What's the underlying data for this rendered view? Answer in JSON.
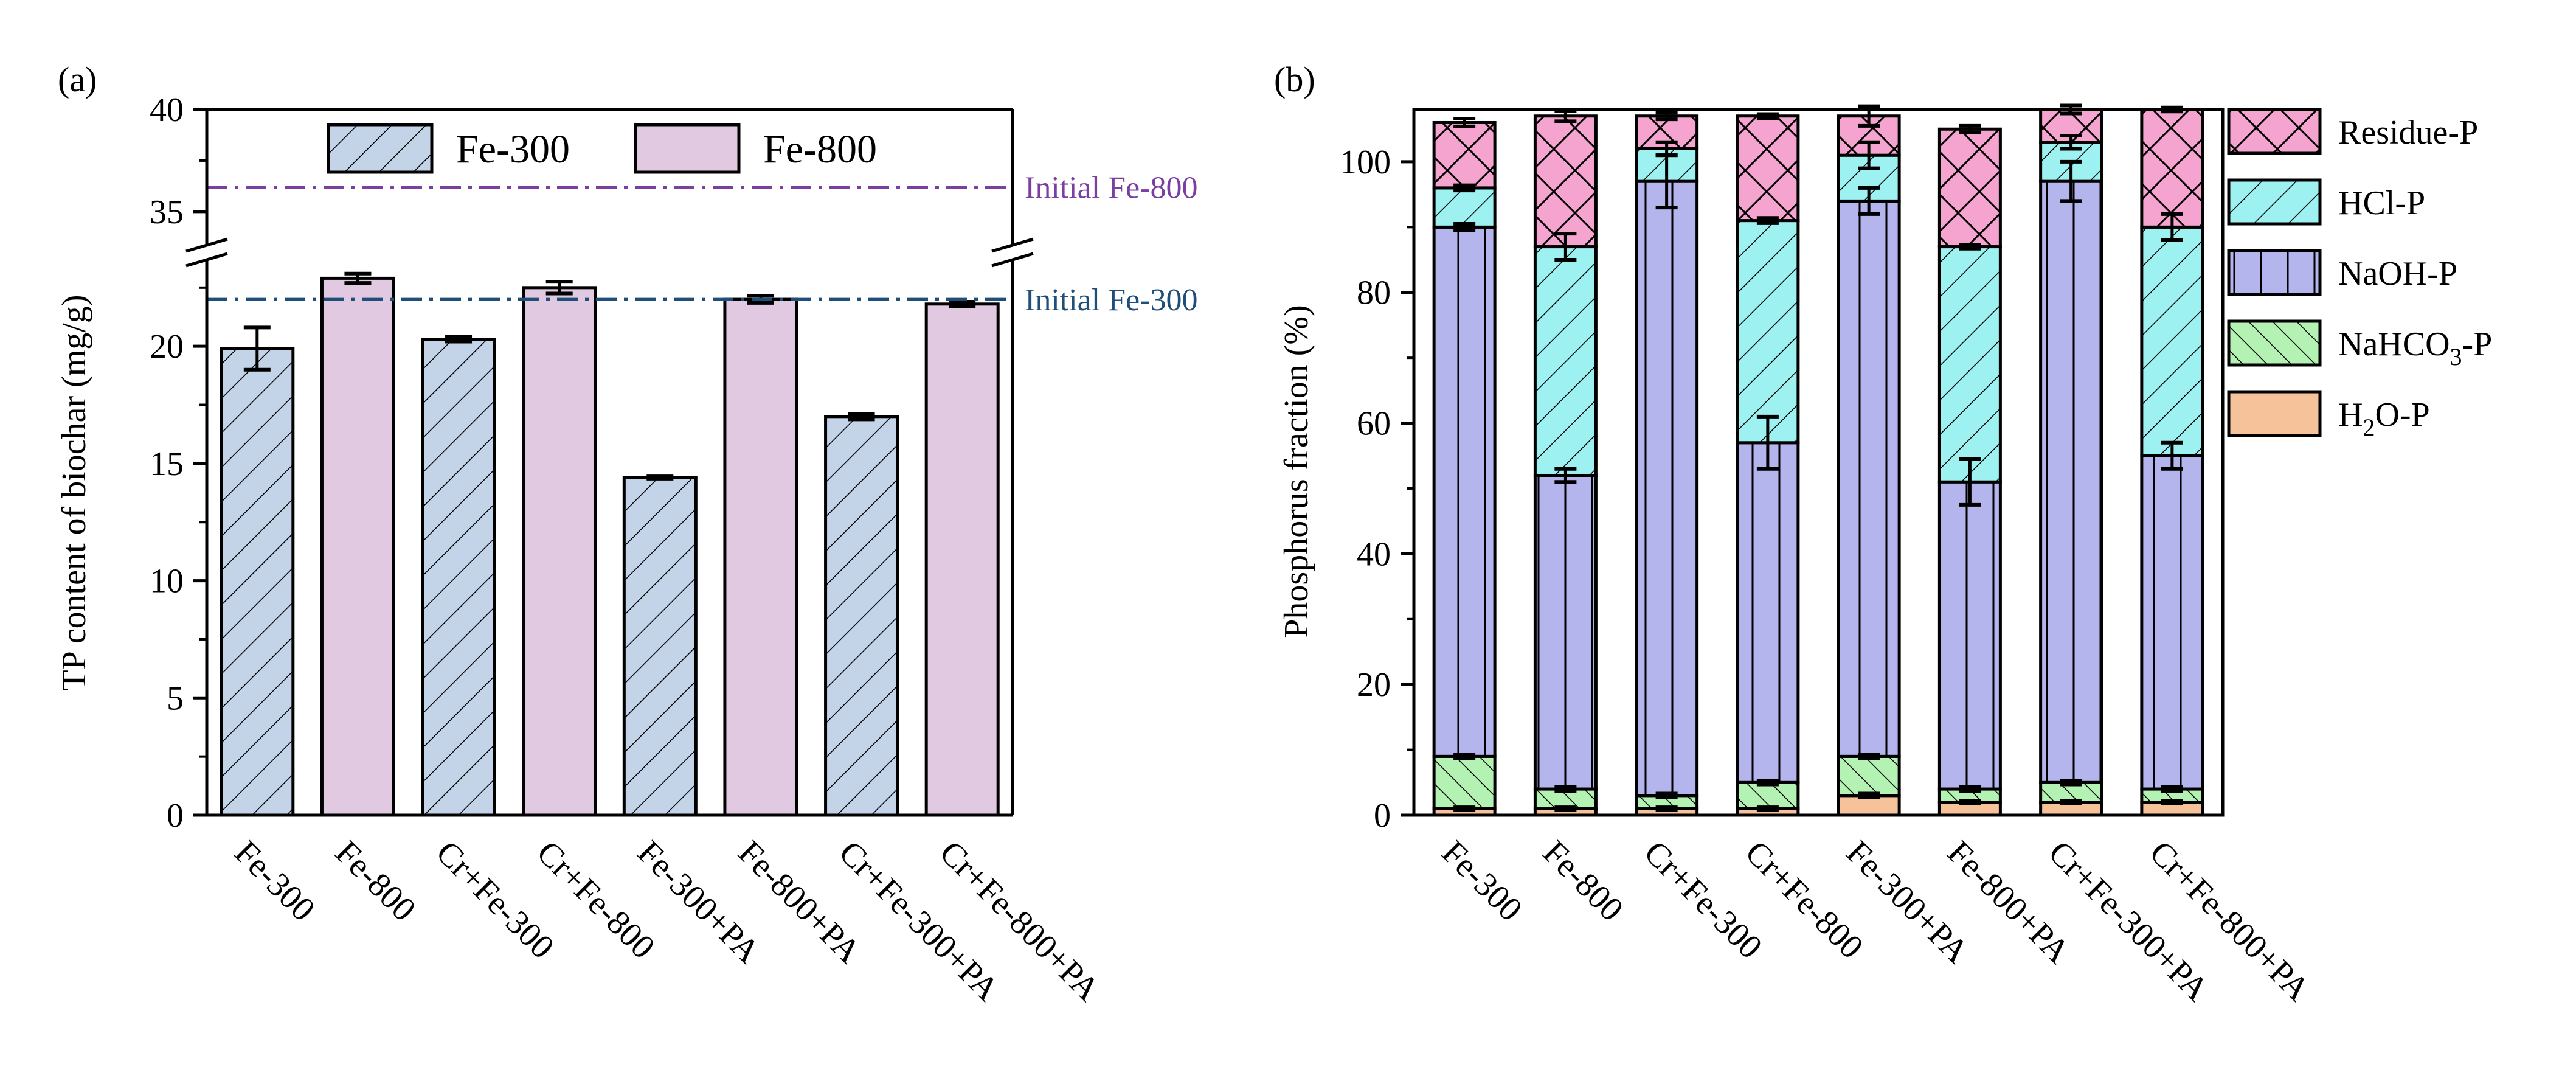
{
  "chart_data": [
    {
      "panel_label": "(a)",
      "type": "bar",
      "categories": [
        "Fe-300",
        "Fe-800",
        "Cr+Fe-300",
        "Cr+Fe-800",
        "Fe-300+PA",
        "Fe-800+PA",
        "Cr+Fe-300+PA",
        "Cr+Fe-800+PA"
      ],
      "values": [
        19.9,
        22.9,
        20.3,
        22.5,
        14.4,
        22.0,
        17.0,
        21.8
      ],
      "errors": [
        0.9,
        0.2,
        0.1,
        0.25,
        0.05,
        0.15,
        0.12,
        0.1
      ],
      "bar_series": [
        "Fe-300",
        "Fe-800",
        "Fe-300",
        "Fe-800",
        "Fe-300",
        "Fe-800",
        "Fe-300",
        "Fe-800"
      ],
      "legend": [
        "Fe-300",
        "Fe-800"
      ],
      "ylabel": "TP content of biochar (mg/g)",
      "ylim": [
        0,
        40
      ],
      "axis_break": [
        24,
        33
      ],
      "yticks_lower": [
        "0",
        "5",
        "10",
        "15",
        "20"
      ],
      "yticks_upper": [
        "35",
        "40"
      ],
      "reference_lines": [
        {
          "label": "Initial Fe-800",
          "value": 36.2,
          "color": "#7a3fa0"
        },
        {
          "label": "Initial Fe-300",
          "value": 22.0,
          "color": "#1f4e79"
        }
      ],
      "colors": {
        "Fe-300": "#c3d4e8",
        "Fe-800": "#e2c9e2"
      }
    },
    {
      "panel_label": "(b)",
      "type": "bar",
      "stacked": true,
      "categories": [
        "Fe-300",
        "Fe-800",
        "Cr+Fe-300",
        "Cr+Fe-800",
        "Fe-300+PA",
        "Fe-800+PA",
        "Cr+Fe-300+PA",
        "Cr+Fe-800+PA"
      ],
      "ylabel": "Phosphorus fraction (%)",
      "ylim": [
        0,
        108
      ],
      "yticks": [
        "0",
        "20",
        "40",
        "60",
        "80",
        "100"
      ],
      "series": [
        {
          "name": "H2O-P",
          "values": [
            1,
            1,
            1,
            1,
            3,
            2,
            2,
            2
          ],
          "color": "#f6c29a"
        },
        {
          "name": "NaHCO3-P",
          "values": [
            8,
            3,
            2,
            4,
            6,
            2,
            3,
            2
          ],
          "color": "#b3f2b3"
        },
        {
          "name": "NaOH-P",
          "values": [
            81,
            48,
            94,
            52,
            85,
            47,
            92,
            51
          ],
          "color": "#b5b5ee"
        },
        {
          "name": "HCl-P",
          "values": [
            6,
            35,
            5,
            34,
            7,
            36,
            6,
            35
          ],
          "color": "#9ef1f1"
        },
        {
          "name": "Residue-P",
          "values": [
            10,
            20,
            5,
            16,
            6,
            18,
            5,
            18
          ],
          "color": "#f5a3cf"
        }
      ],
      "errors": {
        "H2O-P": [
          0.2,
          0.2,
          0.2,
          0.2,
          0.3,
          0.2,
          0.2,
          0.2
        ],
        "NaHCO3-P": [
          0.3,
          0.3,
          0.3,
          0.3,
          0.3,
          0.3,
          0.3,
          0.3
        ],
        "NaOH-P": [
          0.5,
          1.0,
          4.0,
          4.0,
          2.0,
          3.5,
          3.0,
          2.0
        ],
        "HCl-P": [
          0.4,
          2.0,
          1.0,
          0.4,
          2.0,
          0.3,
          1.0,
          2.0
        ],
        "Residue-P": [
          0.6,
          0.8,
          0.5,
          0.3,
          1.5,
          0.5,
          0.6,
          0.3
        ]
      },
      "legend": [
        {
          "key": "Residue-P",
          "label": "Residue-P"
        },
        {
          "key": "HCl-P",
          "label": "HCl-P"
        },
        {
          "key": "NaOH-P",
          "label": "NaOH-P"
        },
        {
          "key": "NaHCO3-P",
          "label": "NaHCO",
          "sub": "3",
          "suffix": "-P"
        },
        {
          "key": "H2O-P",
          "label": "H",
          "sub": "2",
          "suffix": "O-P"
        }
      ]
    }
  ]
}
